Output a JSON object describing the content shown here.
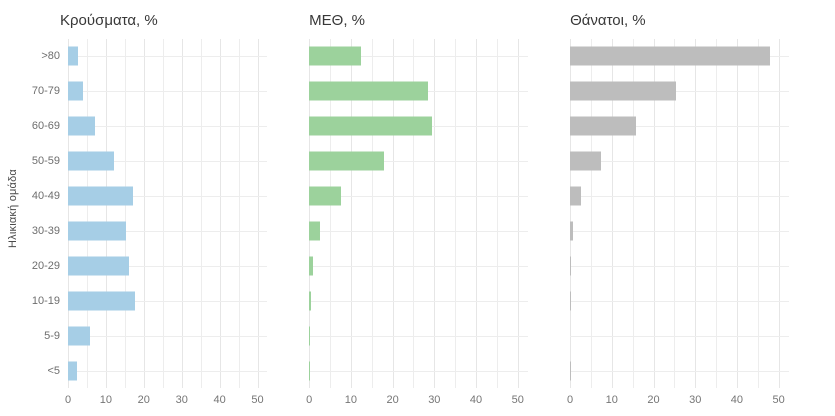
{
  "figure": {
    "y_axis_title": "Ηλικιακή ομάδα"
  },
  "chart_data": [
    {
      "type": "bar",
      "orientation": "horizontal",
      "title": "Κρούσματα, %",
      "categories": [
        ">80",
        "70-79",
        "60-69",
        "50-59",
        "40-49",
        "30-39",
        "20-29",
        "10-19",
        "5-9",
        "<5"
      ],
      "values": [
        2.7,
        4.0,
        7.0,
        12.2,
        17.1,
        15.3,
        16.2,
        17.7,
        5.9,
        2.3
      ],
      "bar_color": "#A6CEE6",
      "xlim": [
        0,
        52.5
      ],
      "xticks": [
        0,
        10,
        20,
        30,
        40,
        50
      ],
      "grid_step": 5,
      "grid": true,
      "legend": false,
      "xlabel": "",
      "ylabel": "Ηλικιακή ομάδα"
    },
    {
      "type": "bar",
      "orientation": "horizontal",
      "title": "ΜΕΘ, %",
      "categories": [
        ">80",
        "70-79",
        "60-69",
        "50-59",
        "40-49",
        "30-39",
        "20-29",
        "10-19",
        "5-9",
        "<5"
      ],
      "values": [
        12.5,
        28.4,
        29.5,
        17.9,
        7.7,
        2.6,
        0.9,
        0.4,
        0.15,
        0.15
      ],
      "bar_color": "#9CD29C",
      "xlim": [
        0,
        52.5
      ],
      "xticks": [
        0,
        10,
        20,
        30,
        40,
        50
      ],
      "grid_step": 5,
      "grid": true,
      "legend": false,
      "xlabel": "",
      "ylabel": ""
    },
    {
      "type": "bar",
      "orientation": "horizontal",
      "title": "Θάνατοι, %",
      "categories": [
        ">80",
        "70-79",
        "60-69",
        "50-59",
        "40-49",
        "30-39",
        "20-29",
        "10-19",
        "5-9",
        "<5"
      ],
      "values": [
        48.0,
        25.3,
        15.9,
        7.4,
        2.6,
        0.6,
        0.1,
        0.1,
        0,
        0.1
      ],
      "bar_color": "#BDBDBD",
      "xlim": [
        0,
        52.5
      ],
      "xticks": [
        0,
        10,
        20,
        30,
        40,
        50
      ],
      "grid_step": 5,
      "grid": true,
      "legend": false,
      "xlabel": "",
      "ylabel": ""
    }
  ]
}
